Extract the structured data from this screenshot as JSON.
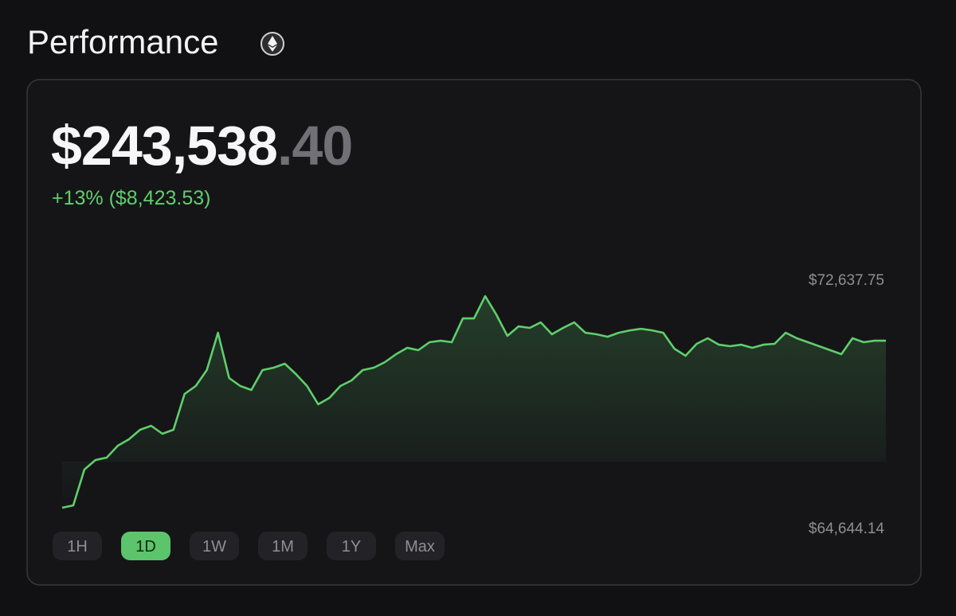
{
  "header": {
    "title": "Performance"
  },
  "balance": {
    "whole": "$243,538",
    "cents": ".40",
    "change": "+13% ($8,423.53)"
  },
  "chart_data": {
    "type": "line",
    "color": "#5fcf6b",
    "ylim": [
      64644.14,
      72637.75
    ],
    "yticks": [
      {
        "value": 72637.75,
        "label": "$72,637.75"
      },
      {
        "value": 64644.14,
        "label": "$64,644.14"
      }
    ],
    "values": [
      64703,
      64792,
      66124,
      66479,
      66568,
      67012,
      67249,
      67604,
      67752,
      67456,
      67604,
      68936,
      69232,
      69824,
      71215,
      69528,
      69232,
      69084,
      69824,
      69913,
      70061,
      69676,
      69232,
      68551,
      68788,
      69232,
      69439,
      69824,
      69913,
      70120,
      70416,
      70653,
      70564,
      70860,
      70919,
      70860,
      71748,
      71748,
      72577,
      71896,
      71097,
      71452,
      71393,
      71600,
      71156,
      71393,
      71600,
      71215,
      71156,
      71067,
      71215,
      71304,
      71363,
      71304,
      71215,
      70623,
      70357,
      70801,
      71008,
      70771,
      70712,
      70771,
      70653,
      70771,
      70801,
      71215,
      71008,
      70860,
      70712,
      70564,
      70416,
      71008,
      70860,
      70919,
      70919
    ]
  },
  "range_buttons": {
    "options": [
      "1H",
      "1D",
      "1W",
      "1M",
      "1Y",
      "Max"
    ],
    "selected": 1
  }
}
